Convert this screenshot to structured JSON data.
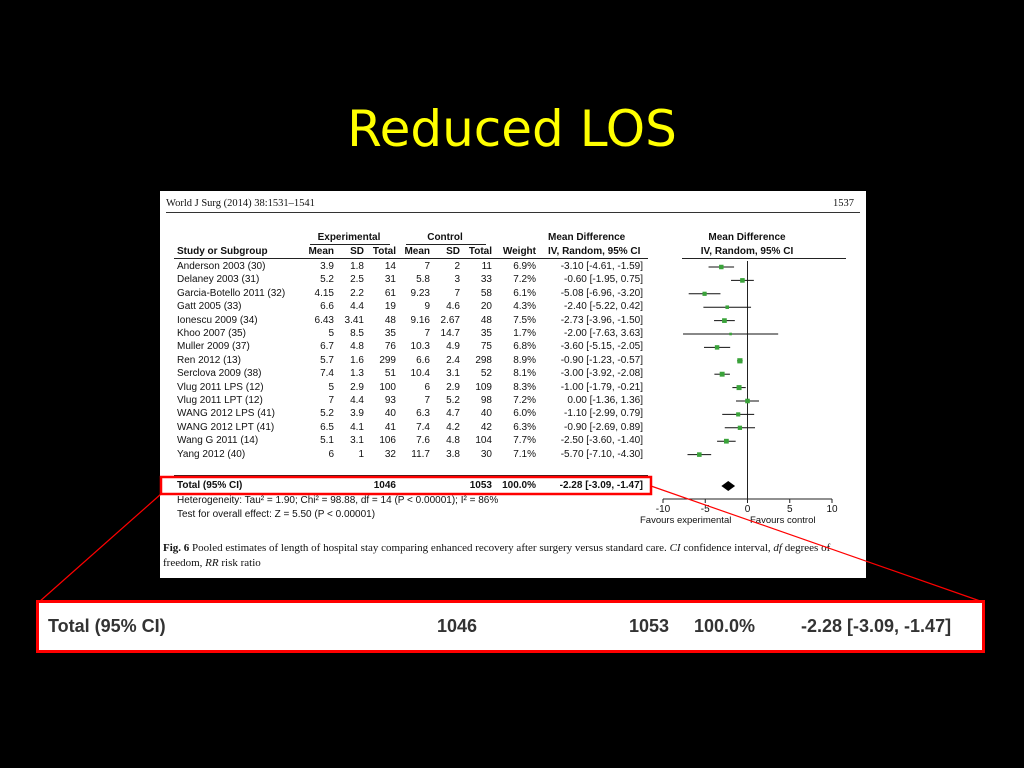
{
  "slide": {
    "title": "Reduced LOS"
  },
  "paper": {
    "journal_ref": "World J Surg (2014) 38:1531–1541",
    "page_number": "1537",
    "header": {
      "group_experimental": "Experimental",
      "group_control": "Control",
      "mean_difference": "Mean Difference",
      "method": "IV, Random, 95% CI",
      "mean_difference_plot": "Mean Difference",
      "method_plot": "IV, Random, 95% CI",
      "study_col": "Study or Subgroup",
      "mean": "Mean",
      "sd": "SD",
      "total": "Total",
      "weight": "Weight"
    },
    "heterogeneity": "Heterogeneity: Tau² = 1.90; Chi² = 98.88, df = 14 (P < 0.00001); I² = 86%",
    "overall_effect": "Test for overall effect: Z = 5.50 (P < 0.00001)",
    "favours_experimental": "Favours experimental",
    "favours_control": "Favours control",
    "caption_label": "Fig. 6",
    "caption_text": "Pooled estimates of length of hospital stay comparing enhanced recovery after surgery versus standard care.",
    "caption_ci_abbr": "CI",
    "caption_ci_def": "confidence interval,",
    "caption_df_abbr": "df",
    "caption_df_def": "degrees of freedom,",
    "caption_rr_abbr": "RR",
    "caption_rr_def": "risk ratio"
  },
  "total_row": {
    "label": "Total (95% CI)",
    "exp_total": "1046",
    "ctrl_total": "1053",
    "weight": "100.0%",
    "md_ci": "-2.28 [-3.09, -1.47]"
  },
  "chart_data": {
    "type": "forest",
    "xlim": [
      -10,
      10
    ],
    "xticks": [
      "-10",
      "-5",
      "0",
      "5",
      "10"
    ],
    "xtick_values": [
      -10,
      -5,
      0,
      5,
      10
    ],
    "point_color": "#3aa33a",
    "studies": [
      {
        "name": "Anderson 2003 (30)",
        "e_mean": "3.9",
        "e_sd": "1.8",
        "e_n": "14",
        "c_mean": "7",
        "c_sd": "2",
        "c_n": "11",
        "weight": "6.9%",
        "ci_text": "-3.10 [-4.61, -1.59]",
        "md": -3.1,
        "lo": -4.61,
        "hi": -1.59
      },
      {
        "name": "Delaney 2003 (31)",
        "e_mean": "5.2",
        "e_sd": "2.5",
        "e_n": "31",
        "c_mean": "5.8",
        "c_sd": "3",
        "c_n": "33",
        "weight": "7.2%",
        "ci_text": "-0.60 [-1.95, 0.75]",
        "md": -0.6,
        "lo": -1.95,
        "hi": 0.75
      },
      {
        "name": "Garcia-Botello 2011 (32)",
        "e_mean": "4.15",
        "e_sd": "2.2",
        "e_n": "61",
        "c_mean": "9.23",
        "c_sd": "7",
        "c_n": "58",
        "weight": "6.1%",
        "ci_text": "-5.08 [-6.96, -3.20]",
        "md": -5.08,
        "lo": -6.96,
        "hi": -3.2
      },
      {
        "name": "Gatt 2005 (33)",
        "e_mean": "6.6",
        "e_sd": "4.4",
        "e_n": "19",
        "c_mean": "9",
        "c_sd": "4.6",
        "c_n": "20",
        "weight": "4.3%",
        "ci_text": "-2.40 [-5.22, 0.42]",
        "md": -2.4,
        "lo": -5.22,
        "hi": 0.42
      },
      {
        "name": "Ionescu 2009 (34)",
        "e_mean": "6.43",
        "e_sd": "3.41",
        "e_n": "48",
        "c_mean": "9.16",
        "c_sd": "2.67",
        "c_n": "48",
        "weight": "7.5%",
        "ci_text": "-2.73 [-3.96, -1.50]",
        "md": -2.73,
        "lo": -3.96,
        "hi": -1.5
      },
      {
        "name": "Khoo 2007 (35)",
        "e_mean": "5",
        "e_sd": "8.5",
        "e_n": "35",
        "c_mean": "7",
        "c_sd": "14.7",
        "c_n": "35",
        "weight": "1.7%",
        "ci_text": "-2.00 [-7.63, 3.63]",
        "md": -2.0,
        "lo": -7.63,
        "hi": 3.63
      },
      {
        "name": "Muller 2009 (37)",
        "e_mean": "6.7",
        "e_sd": "4.8",
        "e_n": "76",
        "c_mean": "10.3",
        "c_sd": "4.9",
        "c_n": "75",
        "weight": "6.8%",
        "ci_text": "-3.60 [-5.15, -2.05]",
        "md": -3.6,
        "lo": -5.15,
        "hi": -2.05
      },
      {
        "name": "Ren 2012 (13)",
        "e_mean": "5.7",
        "e_sd": "1.6",
        "e_n": "299",
        "c_mean": "6.6",
        "c_sd": "2.4",
        "c_n": "298",
        "weight": "8.9%",
        "ci_text": "-0.90 [-1.23, -0.57]",
        "md": -0.9,
        "lo": -1.23,
        "hi": -0.57
      },
      {
        "name": "Serclova 2009 (38)",
        "e_mean": "7.4",
        "e_sd": "1.3",
        "e_n": "51",
        "c_mean": "10.4",
        "c_sd": "3.1",
        "c_n": "52",
        "weight": "8.1%",
        "ci_text": "-3.00 [-3.92, -2.08]",
        "md": -3.0,
        "lo": -3.92,
        "hi": -2.08
      },
      {
        "name": "Vlug 2011 LPS (12)",
        "e_mean": "5",
        "e_sd": "2.9",
        "e_n": "100",
        "c_mean": "6",
        "c_sd": "2.9",
        "c_n": "109",
        "weight": "8.3%",
        "ci_text": "-1.00 [-1.79, -0.21]",
        "md": -1.0,
        "lo": -1.79,
        "hi": -0.21
      },
      {
        "name": "Vlug 2011 LPT (12)",
        "e_mean": "7",
        "e_sd": "4.4",
        "e_n": "93",
        "c_mean": "7",
        "c_sd": "5.2",
        "c_n": "98",
        "weight": "7.2%",
        "ci_text": "0.00 [-1.36, 1.36]",
        "md": 0.0,
        "lo": -1.36,
        "hi": 1.36
      },
      {
        "name": "WANG 2012 LPS (41)",
        "e_mean": "5.2",
        "e_sd": "3.9",
        "e_n": "40",
        "c_mean": "6.3",
        "c_sd": "4.7",
        "c_n": "40",
        "weight": "6.0%",
        "ci_text": "-1.10 [-2.99, 0.79]",
        "md": -1.1,
        "lo": -2.99,
        "hi": 0.79
      },
      {
        "name": "WANG 2012 LPT (41)",
        "e_mean": "6.5",
        "e_sd": "4.1",
        "e_n": "41",
        "c_mean": "7.4",
        "c_sd": "4.2",
        "c_n": "42",
        "weight": "6.3%",
        "ci_text": "-0.90 [-2.69, 0.89]",
        "md": -0.9,
        "lo": -2.69,
        "hi": 0.89
      },
      {
        "name": "Wang G 2011 (14)",
        "e_mean": "5.1",
        "e_sd": "3.1",
        "e_n": "106",
        "c_mean": "7.6",
        "c_sd": "4.8",
        "c_n": "104",
        "weight": "7.7%",
        "ci_text": "-2.50 [-3.60, -1.40]",
        "md": -2.5,
        "lo": -3.6,
        "hi": -1.4
      },
      {
        "name": "Yang 2012 (40)",
        "e_mean": "6",
        "e_sd": "1",
        "e_n": "32",
        "c_mean": "11.7",
        "c_sd": "3.8",
        "c_n": "30",
        "weight": "7.1%",
        "ci_text": "-5.70 [-7.10, -4.30]",
        "md": -5.7,
        "lo": -7.1,
        "hi": -4.3
      }
    ],
    "pooled": {
      "md": -2.28,
      "lo": -3.09,
      "hi": -1.47
    }
  }
}
